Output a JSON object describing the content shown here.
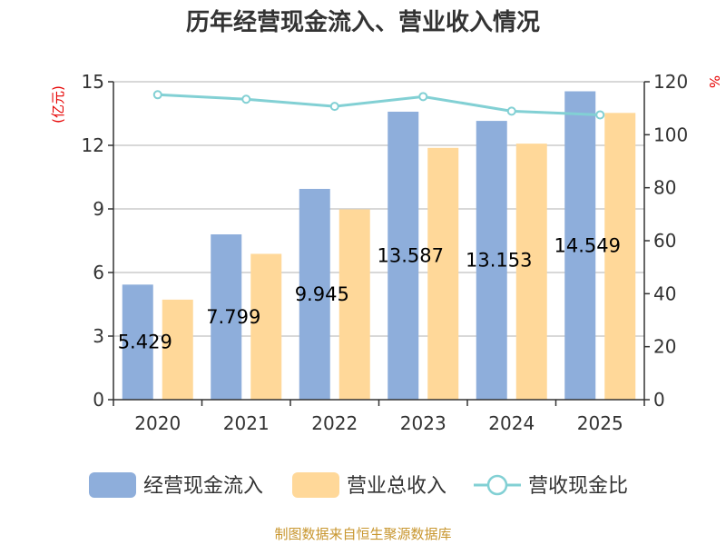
{
  "chart_data": {
    "type": "bar",
    "title": "历年经营现金流入、营业收入情况",
    "categories": [
      "2020",
      "2021",
      "2022",
      "2023",
      "2024",
      "2025"
    ],
    "y_left": {
      "unit": "(亿元)",
      "range": [
        0,
        15
      ],
      "ticks": [
        "0",
        "3",
        "6",
        "9",
        "12",
        "15"
      ]
    },
    "y_right": {
      "unit": "%",
      "range": [
        0,
        120
      ],
      "ticks": [
        "0",
        "20",
        "40",
        "60",
        "80",
        "100",
        "120"
      ]
    },
    "grid": true,
    "legend_position": "bottom",
    "series": [
      {
        "name": "经营现金流入",
        "type": "bar",
        "color": "#8eaedb",
        "values": [
          5.429,
          7.799,
          9.945,
          13.587,
          13.153,
          14.549
        ],
        "labels": [
          "5.429",
          "7.799",
          "9.945",
          "13.587",
          "13.153",
          "14.549"
        ]
      },
      {
        "name": "营业总收入",
        "type": "bar",
        "color": "#ffd899",
        "values": [
          4.72,
          6.88,
          8.98,
          11.88,
          12.08,
          13.53
        ]
      },
      {
        "name": "营收现金比",
        "type": "line",
        "axis": "right",
        "color": "#82d0d4",
        "values": [
          115.1,
          113.4,
          110.7,
          114.4,
          108.9,
          107.5
        ]
      }
    ]
  },
  "source": "制图数据来自恒生聚源数据库"
}
